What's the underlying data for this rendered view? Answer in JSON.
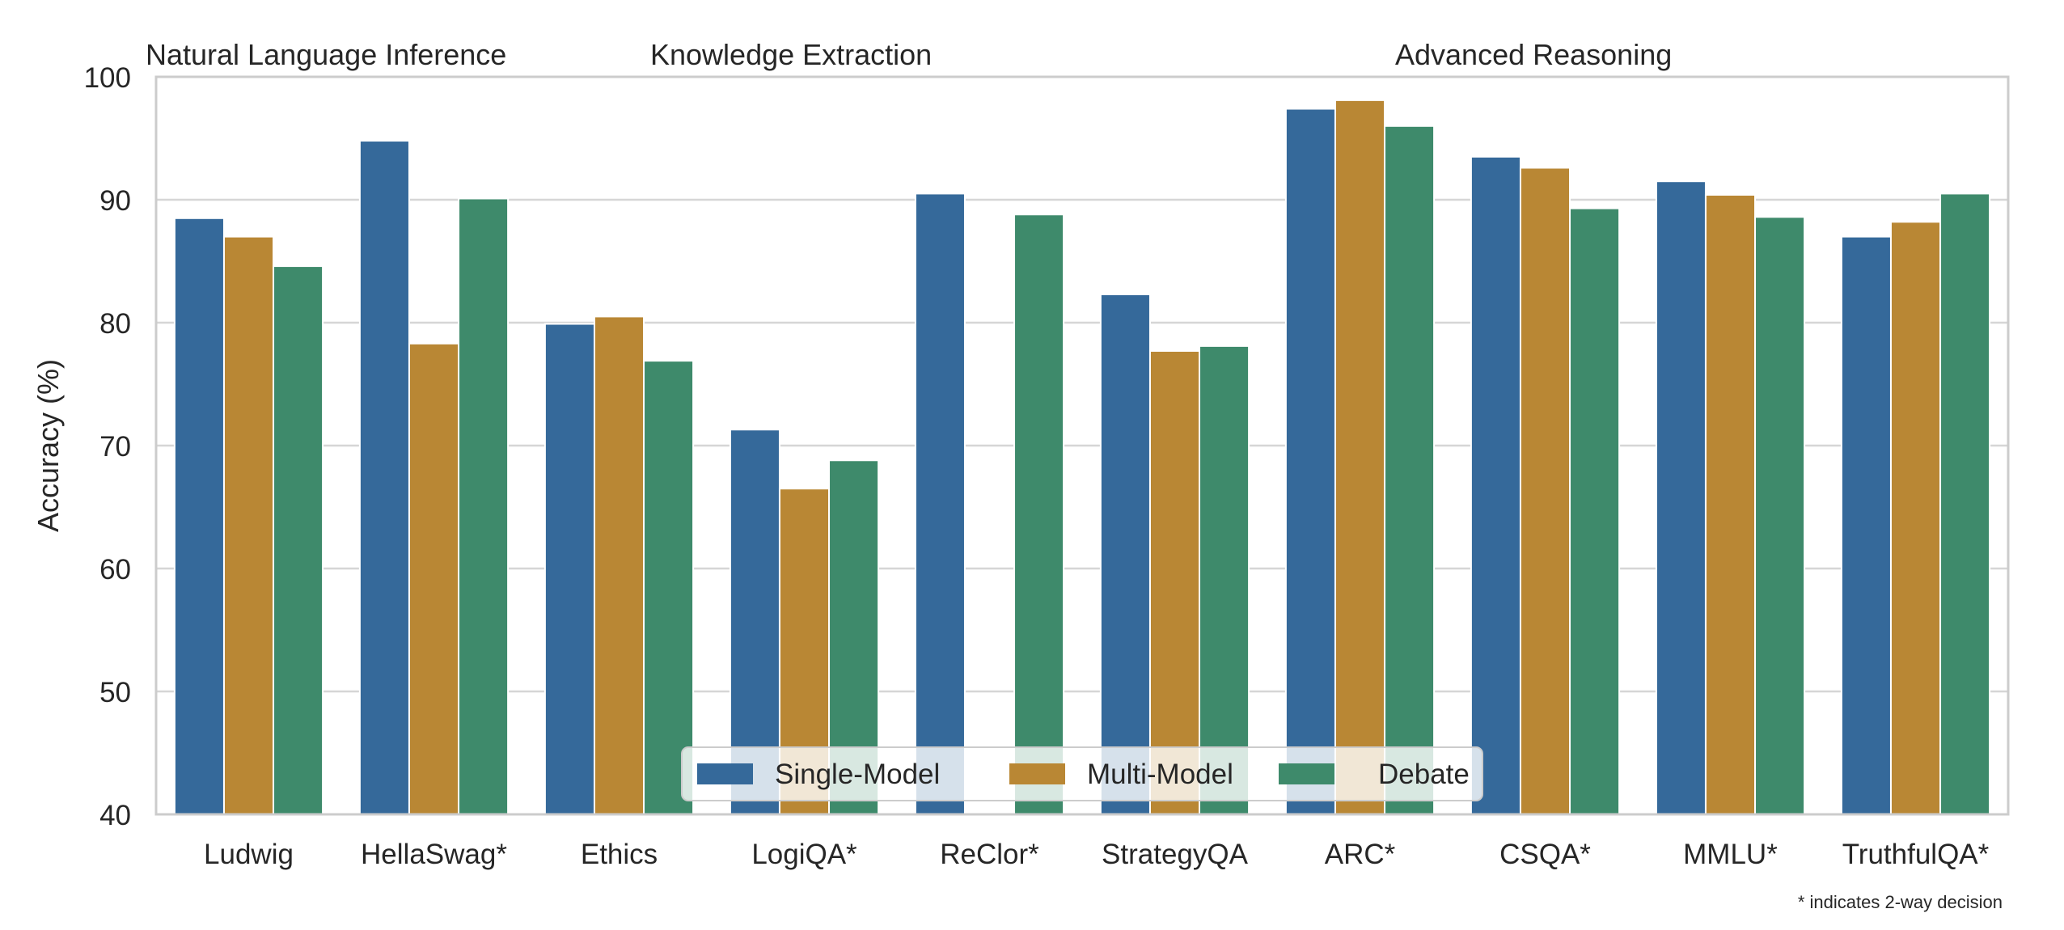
{
  "chart_data": {
    "type": "bar",
    "title": "",
    "xlabel": "",
    "ylabel": "Accuracy (%)",
    "ylim": [
      40,
      100
    ],
    "yticks": [
      40,
      50,
      60,
      70,
      80,
      90,
      100
    ],
    "grid": true,
    "legend_position": "bottom-center",
    "categories": [
      "Ludwig",
      "HellaSwag*",
      "Ethics",
      "LogiQA*",
      "ReClor*",
      "StrategyQA",
      "ARC*",
      "CSQA*",
      "MMLU*",
      "TruthfulQA*"
    ],
    "series": [
      {
        "name": "Single-Model",
        "color": "#35699a",
        "values": [
          88.5,
          94.8,
          79.9,
          71.3,
          90.5,
          82.3,
          97.4,
          93.5,
          91.5,
          87.0
        ]
      },
      {
        "name": "Multi-Model",
        "color": "#b98734",
        "values": [
          87.0,
          78.3,
          80.5,
          66.5,
          40.0,
          77.7,
          98.1,
          92.6,
          90.4,
          88.2
        ]
      },
      {
        "name": "Debate",
        "color": "#3e8a6b",
        "values": [
          84.6,
          90.1,
          76.9,
          68.8,
          88.8,
          78.1,
          96.0,
          89.3,
          88.6,
          90.5
        ]
      }
    ],
    "group_labels": [
      "Natural Language Inference",
      "Knowledge Extraction",
      "Advanced Reasoning"
    ],
    "footnote": "* indicates 2-way decision"
  }
}
